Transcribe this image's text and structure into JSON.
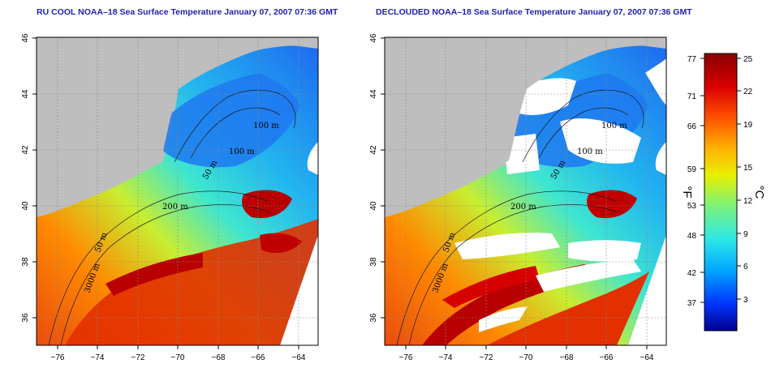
{
  "panels": [
    {
      "title": "RU COOL NOAA–18 Sea Surface Temperature January 07, 2007 07:36 GMT"
    },
    {
      "title": "DECLOUDED NOAA–18 Sea Surface Temperature January 07, 2007 07:36 GMT"
    }
  ],
  "axes": {
    "lon_ticks": [
      "−76",
      "−74",
      "−72",
      "−70",
      "−68",
      "−66",
      "−64"
    ],
    "lat_ticks": [
      "46",
      "44",
      "42",
      "40",
      "38",
      "36"
    ]
  },
  "contour_labels": [
    "100 m",
    "100 m",
    "50 m",
    "200 m",
    "50 m",
    "3000 m"
  ],
  "colorbar": {
    "fahrenheit_ticks": [
      "77",
      "71",
      "66",
      "59",
      "53",
      "48",
      "42",
      "37"
    ],
    "celsius_ticks": [
      "25",
      "22",
      "19",
      "15",
      "12",
      "9",
      "6",
      "3"
    ],
    "unit_f": "°F",
    "unit_c": "°C",
    "colors": [
      "#00008f",
      "#0037ff",
      "#00a8ff",
      "#2de8e8",
      "#7af27a",
      "#e8f000",
      "#ffb000",
      "#ff5000",
      "#d80000",
      "#8b0000"
    ]
  },
  "colors": {
    "land": "#bebebe",
    "cloud_mask": "#ffffff",
    "title": "#1f1fb0"
  }
}
